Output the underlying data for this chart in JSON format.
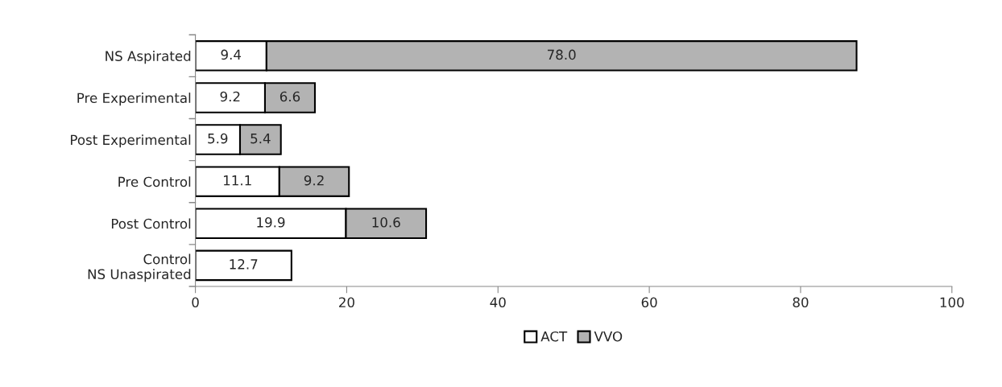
{
  "chart_data": {
    "type": "bar",
    "orientation": "horizontal",
    "stacked": true,
    "categories": [
      "NS Aspirated",
      "Pre Experimental",
      "Post Experimental",
      "Pre Control",
      "Post Control",
      "Control\nNS Unaspirated"
    ],
    "series": [
      {
        "name": "ACT",
        "color": "#ffffff",
        "values": [
          9.4,
          9.2,
          5.9,
          11.1,
          19.9,
          12.7
        ],
        "value_labels": [
          "9.4",
          "9.2",
          "5.9",
          "11.1",
          "19.9",
          "12.7"
        ]
      },
      {
        "name": "VVO",
        "color": "#b3b3b3",
        "values": [
          78.0,
          6.6,
          5.4,
          9.2,
          10.6,
          null
        ],
        "value_labels": [
          "78.0",
          "6.6",
          "5.4",
          "9.2",
          "10.6",
          null
        ]
      }
    ],
    "xlim": [
      0,
      100
    ],
    "xticks": [
      0,
      20,
      40,
      60,
      80,
      100
    ],
    "grid": false,
    "legend": "bottom"
  }
}
